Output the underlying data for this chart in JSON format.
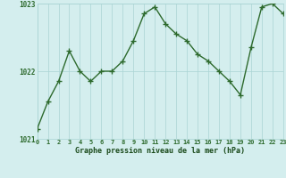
{
  "x": [
    0,
    1,
    2,
    3,
    4,
    5,
    6,
    7,
    8,
    9,
    10,
    11,
    12,
    13,
    14,
    15,
    16,
    17,
    18,
    19,
    20,
    21,
    22,
    23
  ],
  "y": [
    1021.15,
    1021.55,
    1021.85,
    1022.3,
    1022.0,
    1021.85,
    1022.0,
    1022.0,
    1022.15,
    1022.45,
    1022.85,
    1022.95,
    1022.7,
    1022.55,
    1022.45,
    1022.25,
    1022.15,
    1022.0,
    1021.85,
    1021.65,
    1022.35,
    1022.95,
    1023.0,
    1022.85
  ],
  "line_color": "#2d6a2d",
  "marker_color": "#2d6a2d",
  "bg_color": "#d4eeee",
  "grid_color": "#aad4d4",
  "axis_label_color": "#1a4a1a",
  "tick_color": "#2d6a2d",
  "xlabel": "Graphe pression niveau de la mer (hPa)",
  "ylim": [
    1021.0,
    1023.0
  ],
  "yticks": [
    1021,
    1022,
    1023
  ],
  "xticks": [
    0,
    1,
    2,
    3,
    4,
    5,
    6,
    7,
    8,
    9,
    10,
    11,
    12,
    13,
    14,
    15,
    16,
    17,
    18,
    19,
    20,
    21,
    22,
    23
  ],
  "xtick_labels": [
    "0",
    "1",
    "2",
    "3",
    "4",
    "5",
    "6",
    "7",
    "8",
    "9",
    "10",
    "11",
    "12",
    "13",
    "14",
    "15",
    "16",
    "17",
    "18",
    "19",
    "20",
    "21",
    "22",
    "23"
  ],
  "ytick_labels": [
    "1021",
    "1022",
    "1023"
  ],
  "marker_size": 4,
  "line_width": 1.0
}
